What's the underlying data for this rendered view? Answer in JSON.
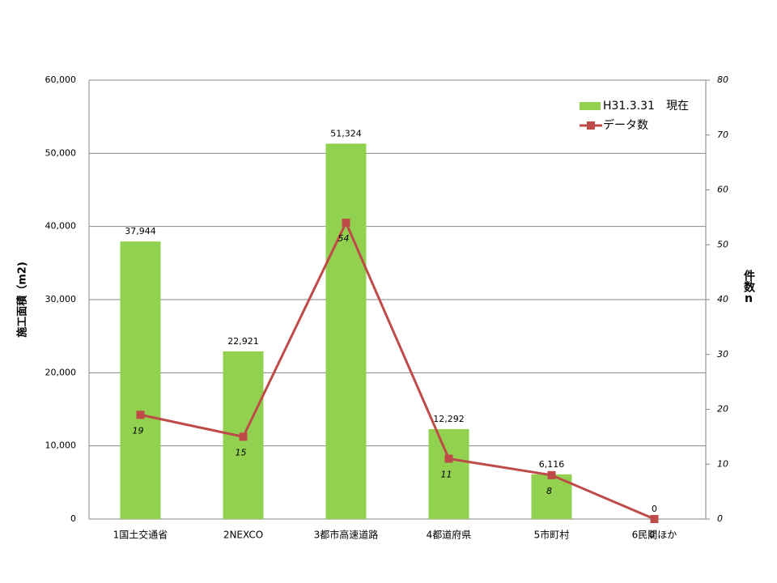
{
  "chart_data": {
    "type": "bar",
    "y_label": "施工面積（m2)",
    "y2_label": "件数n",
    "categories": [
      "1国土交通省",
      "2NEXCO",
      "3都市高速道路",
      "4都道府県",
      "5市町村",
      "6民間ほか"
    ],
    "series": [
      {
        "name": "H31.3.31　現在",
        "type": "bar",
        "color": "#92d050",
        "values": [
          37944,
          22921,
          51324,
          12292,
          6116,
          0
        ],
        "value_labels": [
          "37,944",
          "22,921",
          "51,324",
          "12,292",
          "6,116",
          "0"
        ]
      },
      {
        "name": "データ数",
        "type": "line",
        "axis": "y2",
        "color": "#be4b48",
        "values": [
          19,
          15,
          54,
          11,
          8,
          0
        ]
      }
    ],
    "ylim": [
      0,
      60000
    ],
    "yticks": [
      0,
      {
        "value": 10000,
        "label": "10,000"
      },
      {
        "value": 20000,
        "label": "20,000"
      },
      {
        "value": 30000,
        "label": "30,000"
      },
      {
        "value": 40000,
        "label": "40,000"
      },
      {
        "value": 50000,
        "label": "50,000"
      },
      {
        "value": 60000,
        "label": "60,000"
      }
    ],
    "y2lim": [
      0,
      80
    ],
    "y2ticks": [
      0,
      10,
      20,
      30,
      40,
      50,
      60,
      70,
      80
    ],
    "grid": true,
    "legend": "upper right"
  }
}
